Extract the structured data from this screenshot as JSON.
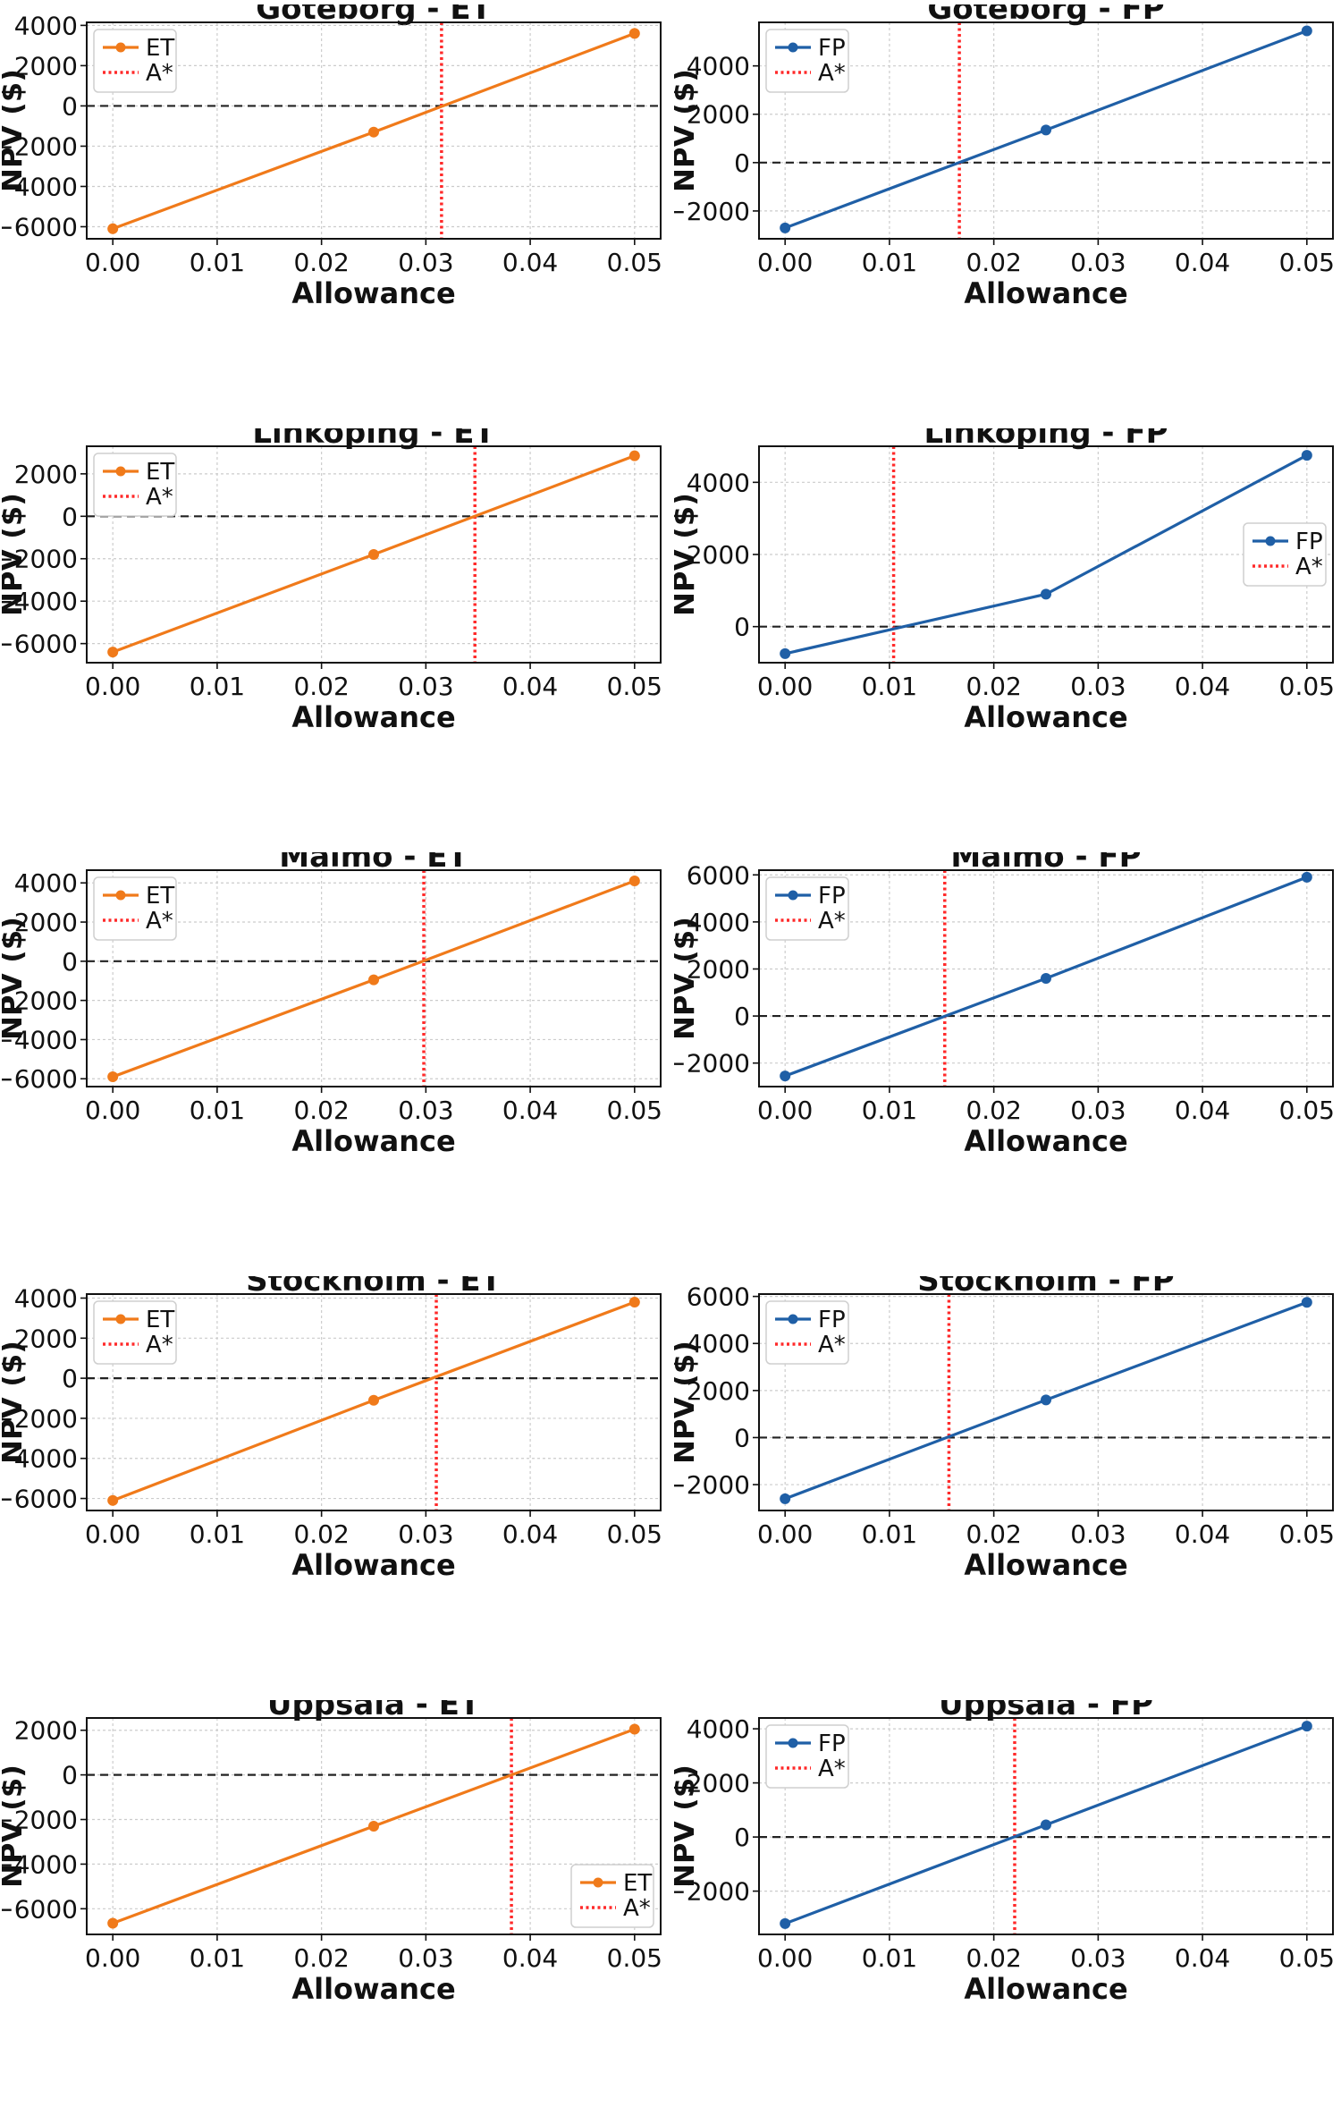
{
  "x_ticks": [
    "0.00",
    "0.01",
    "0.02",
    "0.03",
    "0.04",
    "0.05"
  ],
  "xlabel": "Allowance",
  "ylabel": "NPV ($)",
  "colors": {
    "ET": "#f07a1a",
    "FP": "#1f5fa6",
    "astar": "#ff2a2a",
    "zero": "#222222",
    "grid": "#cccccc"
  },
  "chart_data": [
    {
      "type": "line",
      "title": "Goteborg - ET",
      "xlabel": "Allowance",
      "ylabel": "NPV ($)",
      "x": [
        0,
        0.025,
        0.05
      ],
      "series": [
        {
          "name": "ET",
          "values": [
            -6100,
            -1300,
            3600
          ]
        }
      ],
      "astar": 0.0315,
      "astar_label": "A*",
      "xlim": [
        -0.0025,
        0.0525
      ],
      "ylim": [
        -6600,
        4150
      ],
      "yticks": [
        4000,
        2000,
        0,
        -2000,
        -4000,
        -6000
      ],
      "legend": "upper-left"
    },
    {
      "type": "line",
      "title": "Goteborg - FP",
      "xlabel": "Allowance",
      "ylabel": "NPV ($)",
      "x": [
        0,
        0.025,
        0.05
      ],
      "series": [
        {
          "name": "FP",
          "values": [
            -2700,
            1350,
            5450
          ]
        }
      ],
      "astar": 0.0167,
      "astar_label": "A*",
      "xlim": [
        -0.0025,
        0.0525
      ],
      "ylim": [
        -3150,
        5800
      ],
      "yticks": [
        4000,
        2000,
        0,
        -2000
      ],
      "legend": "upper-left"
    },
    {
      "type": "line",
      "title": "Linkoping - ET",
      "xlabel": "Allowance",
      "ylabel": "NPV ($)",
      "x": [
        0,
        0.025,
        0.05
      ],
      "series": [
        {
          "name": "ET",
          "values": [
            -6400,
            -1800,
            2850
          ]
        }
      ],
      "astar": 0.0347,
      "astar_label": "A*",
      "xlim": [
        -0.0025,
        0.0525
      ],
      "ylim": [
        -6900,
        3300
      ],
      "yticks": [
        2000,
        0,
        -2000,
        -4000,
        -6000
      ],
      "legend": "upper-left"
    },
    {
      "type": "line",
      "title": "Linkoping - FP",
      "xlabel": "Allowance",
      "ylabel": "NPV ($)",
      "x": [
        0,
        0.025,
        0.05
      ],
      "series": [
        {
          "name": "FP",
          "values": [
            -750,
            900,
            4750
          ]
        }
      ],
      "astar": 0.0104,
      "astar_label": "A*",
      "xlim": [
        -0.0025,
        0.0525
      ],
      "ylim": [
        -1000,
        5000
      ],
      "yticks": [
        4000,
        2000,
        0
      ],
      "legend": "center-right"
    },
    {
      "type": "line",
      "title": "Malmo - ET",
      "xlabel": "Allowance",
      "ylabel": "NPV ($)",
      "x": [
        0,
        0.025,
        0.05
      ],
      "series": [
        {
          "name": "ET",
          "values": [
            -5900,
            -950,
            4100
          ]
        }
      ],
      "astar": 0.0298,
      "astar_label": "A*",
      "xlim": [
        -0.0025,
        0.0525
      ],
      "ylim": [
        -6400,
        4650
      ],
      "yticks": [
        4000,
        2000,
        0,
        -2000,
        -4000,
        -6000
      ],
      "legend": "upper-left"
    },
    {
      "type": "line",
      "title": "Malmo - FP",
      "xlabel": "Allowance",
      "ylabel": "NPV ($)",
      "x": [
        0,
        0.025,
        0.05
      ],
      "series": [
        {
          "name": "FP",
          "values": [
            -2550,
            1600,
            5900
          ]
        }
      ],
      "astar": 0.0153,
      "astar_label": "A*",
      "xlim": [
        -0.0025,
        0.0525
      ],
      "ylim": [
        -3000,
        6200
      ],
      "yticks": [
        6000,
        4000,
        2000,
        0,
        -2000
      ],
      "legend": "upper-left"
    },
    {
      "type": "line",
      "title": "Stockholm - ET",
      "xlabel": "Allowance",
      "ylabel": "NPV ($)",
      "x": [
        0,
        0.025,
        0.05
      ],
      "series": [
        {
          "name": "ET",
          "values": [
            -6100,
            -1100,
            3800
          ]
        }
      ],
      "astar": 0.031,
      "astar_label": "A*",
      "xlim": [
        -0.0025,
        0.0525
      ],
      "ylim": [
        -6600,
        4200
      ],
      "yticks": [
        4000,
        2000,
        0,
        -2000,
        -4000,
        -6000
      ],
      "legend": "upper-left"
    },
    {
      "type": "line",
      "title": "Stockholm - FP",
      "xlabel": "Allowance",
      "ylabel": "NPV ($)",
      "x": [
        0,
        0.025,
        0.05
      ],
      "series": [
        {
          "name": "FP",
          "values": [
            -2600,
            1600,
            5750
          ]
        }
      ],
      "astar": 0.0157,
      "astar_label": "A*",
      "xlim": [
        -0.0025,
        0.0525
      ],
      "ylim": [
        -3100,
        6100
      ],
      "yticks": [
        6000,
        4000,
        2000,
        0,
        -2000
      ],
      "legend": "upper-left"
    },
    {
      "type": "line",
      "title": "Uppsala - ET",
      "xlabel": "Allowance",
      "ylabel": "NPV ($)",
      "x": [
        0,
        0.025,
        0.05
      ],
      "series": [
        {
          "name": "ET",
          "values": [
            -6650,
            -2300,
            2050
          ]
        }
      ],
      "astar": 0.0382,
      "astar_label": "A*",
      "xlim": [
        -0.0025,
        0.0525
      ],
      "ylim": [
        -7150,
        2550
      ],
      "yticks": [
        2000,
        0,
        -2000,
        -4000,
        -6000
      ],
      "legend": "lower-right"
    },
    {
      "type": "line",
      "title": "Uppsala - FP",
      "xlabel": "Allowance",
      "ylabel": "NPV ($)",
      "x": [
        0,
        0.025,
        0.05
      ],
      "series": [
        {
          "name": "FP",
          "values": [
            -3200,
            450,
            4100
          ]
        }
      ],
      "astar": 0.022,
      "astar_label": "A*",
      "xlim": [
        -0.0025,
        0.0525
      ],
      "ylim": [
        -3600,
        4400
      ],
      "yticks": [
        4000,
        2000,
        0,
        -2000
      ],
      "legend": "upper-left"
    }
  ]
}
